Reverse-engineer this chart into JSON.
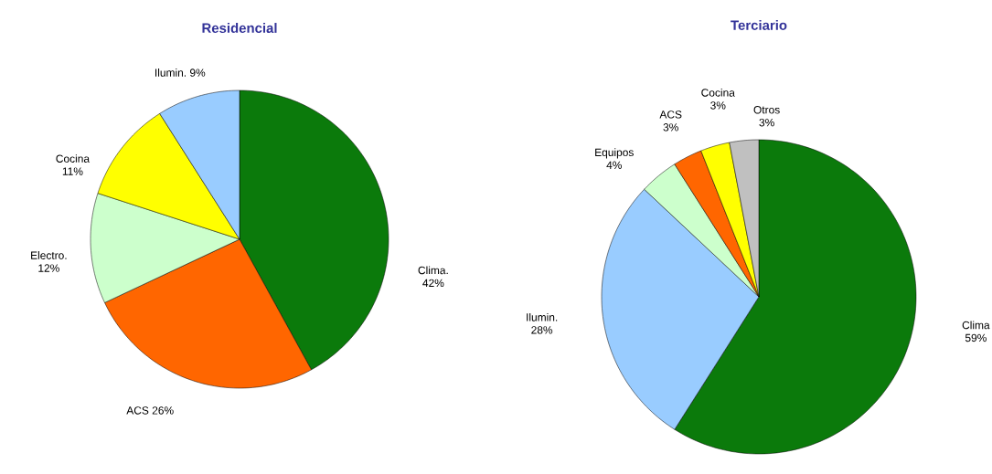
{
  "chart_data": [
    {
      "type": "pie",
      "title": "Residencial",
      "categories": [
        "Clima.",
        "ACS",
        "Electro.",
        "Cocina",
        "Ilumin."
      ],
      "values": [
        42,
        26,
        12,
        11,
        9
      ],
      "value_labels": [
        "42%",
        "26%",
        "12%",
        "11%",
        "9%"
      ],
      "colors": [
        "#0b7a0b",
        "#ff6600",
        "#ccffcc",
        "#ffff00",
        "#99ccff"
      ]
    },
    {
      "type": "pie",
      "title": "Terciario",
      "categories": [
        "Clima",
        "Ilumin.",
        "Equipos",
        "ACS",
        "Cocina",
        "Otros"
      ],
      "values": [
        59,
        28,
        4,
        3,
        3,
        3
      ],
      "value_labels": [
        "59%",
        "28%",
        "4%",
        "3%",
        "3%",
        "3%"
      ],
      "colors": [
        "#0b7a0b",
        "#99ccff",
        "#ccffcc",
        "#ff6600",
        "#ffff00",
        "#c0c0c0"
      ]
    }
  ]
}
